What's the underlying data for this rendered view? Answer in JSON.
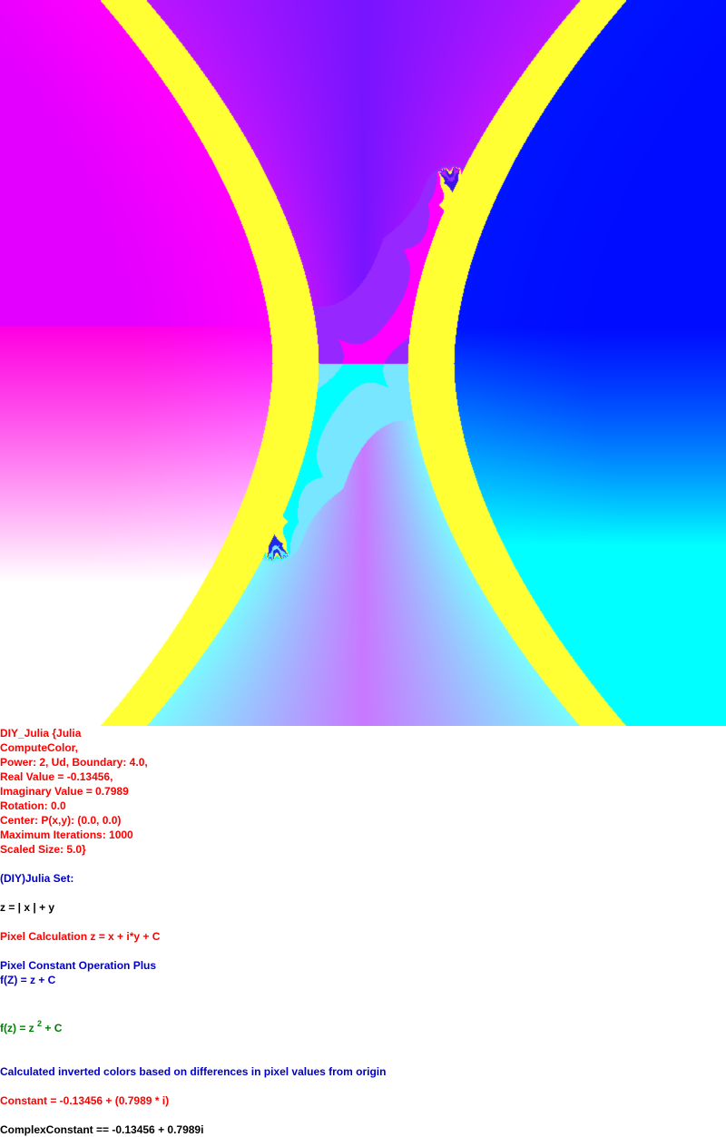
{
  "colors": {
    "magenta": "#ff00ff",
    "yellow": "#ffff33",
    "blue": "#0000ff",
    "cyan": "#00ffff",
    "white": "#ffffff",
    "text_red": "#ff0000",
    "text_blue": "#0000cc",
    "text_black": "#000000",
    "text_green": "#008000"
  },
  "params": {
    "lines": [
      "DIY_Julia {Julia",
      "ComputeColor,",
      "Power: 2, Ud, Boundary: 4.0,",
      "Real Value = -0.13456,",
      "Imaginary Value = 0.7989",
      "Rotation: 0.0",
      "Center: P(x,y): (0.0, 0.0)",
      "Maximum Iterations: 1000",
      "Scaled Size: 5.0}"
    ]
  },
  "info": {
    "set_title": "(DIY)Julia Set:",
    "z_formula": "z = | x | + y",
    "pixel_calc": "Pixel Calculation z = x + i*y + C",
    "constant_op": "Pixel Constant Operation Plus",
    "f_upper": "f(Z) = z + C",
    "f_lower_prefix": "f(z) = z ",
    "f_lower_power": "2",
    "f_lower_suffix": " + C",
    "color_note": "Calculated inverted colors based on differences in pixel values from origin",
    "constant": "Constant = -0.13456 + (0.7989 * i)",
    "complex_constant": "ComplexConstant == -0.13456 + 0.7989i"
  }
}
